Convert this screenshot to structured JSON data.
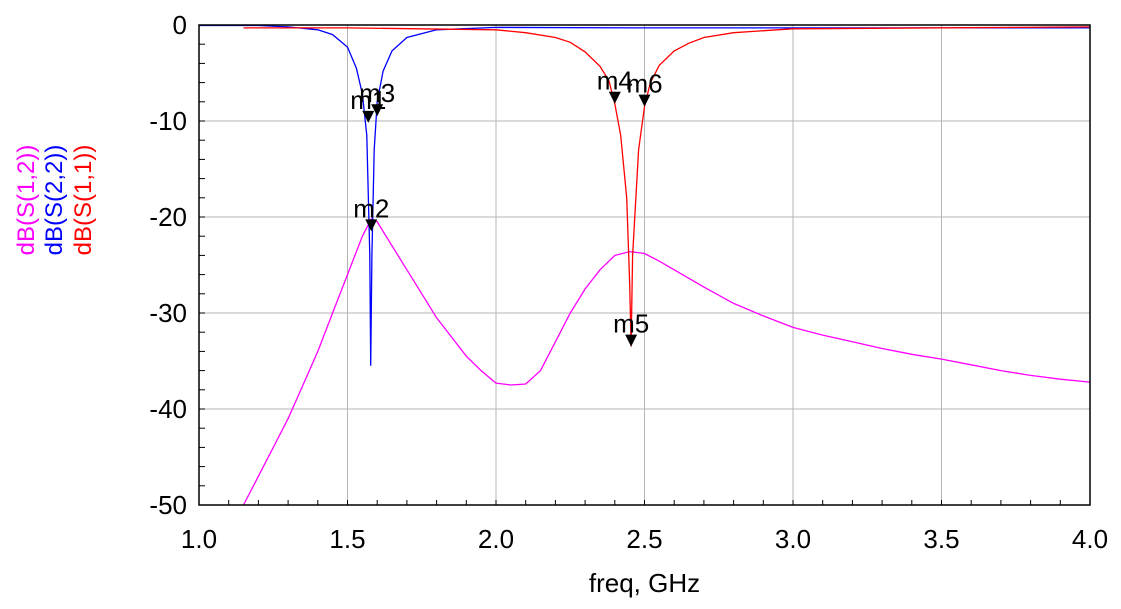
{
  "chart_data": {
    "type": "line",
    "xlabel": "freq, GHz",
    "xlim": [
      1.0,
      4.0
    ],
    "ylim": [
      -50,
      0
    ],
    "xticks": [
      "1.0",
      "1.5",
      "2.0",
      "2.5",
      "3.0",
      "3.5",
      "4.0"
    ],
    "yticks": [
      "0",
      "-10",
      "-20",
      "-30",
      "-40",
      "-50"
    ],
    "grid": true,
    "legend": "rotated labels left of y-axis",
    "series": [
      {
        "name": "dB(S(1,2))",
        "color": "#ff00ff",
        "x": [
          1.15,
          1.2,
          1.25,
          1.3,
          1.35,
          1.4,
          1.45,
          1.5,
          1.55,
          1.58,
          1.6,
          1.65,
          1.7,
          1.75,
          1.8,
          1.85,
          1.9,
          1.95,
          2.0,
          2.05,
          2.1,
          2.15,
          2.2,
          2.25,
          2.3,
          2.35,
          2.4,
          2.45,
          2.5,
          2.55,
          2.6,
          2.7,
          2.8,
          2.9,
          3.0,
          3.1,
          3.2,
          3.3,
          3.4,
          3.5,
          3.6,
          3.7,
          3.8,
          3.9,
          4.0
        ],
        "y": [
          -50,
          -47,
          -44,
          -41,
          -37.5,
          -34,
          -30,
          -26,
          -22,
          -20.2,
          -20.5,
          -23,
          -25.5,
          -28,
          -30.5,
          -32.5,
          -34.5,
          -36,
          -37.3,
          -37.5,
          -37.4,
          -36,
          -33,
          -30,
          -27.5,
          -25.5,
          -24,
          -23.6,
          -23.8,
          -24.6,
          -25.5,
          -27.3,
          -29,
          -30.3,
          -31.5,
          -32.3,
          -33,
          -33.7,
          -34.3,
          -34.8,
          -35.4,
          -36,
          -36.5,
          -36.9,
          -37.2
        ]
      },
      {
        "name": "dB(S(2,2))",
        "color": "#0000ff",
        "x": [
          1.0,
          1.2,
          1.3,
          1.4,
          1.45,
          1.5,
          1.53,
          1.55,
          1.565,
          1.575,
          1.578,
          1.582,
          1.59,
          1.6,
          1.62,
          1.65,
          1.7,
          1.8,
          2.0,
          2.5,
          3.0,
          4.0
        ],
        "y": [
          -0.05,
          -0.05,
          -0.2,
          -0.5,
          -1.0,
          -2.3,
          -4.5,
          -7.2,
          -11.5,
          -24,
          -35.5,
          -24,
          -13,
          -8,
          -4.8,
          -2.7,
          -1.3,
          -0.5,
          -0.25,
          -0.3,
          -0.3,
          -0.3
        ],
        "markers": [
          {
            "name": "m1",
            "x": 1.57,
            "y": -10.2
          },
          {
            "name": "m3",
            "x": 1.6,
            "y": -9.5
          },
          {
            "name": "m2",
            "x": 1.58,
            "y": -21.5
          }
        ]
      },
      {
        "name": "dB(S(1,1))",
        "color": "#ff0000",
        "x": [
          1.15,
          1.5,
          2.0,
          2.1,
          2.2,
          2.25,
          2.3,
          2.35,
          2.38,
          2.4,
          2.42,
          2.44,
          2.45,
          2.455,
          2.46,
          2.48,
          2.5,
          2.52,
          2.55,
          2.6,
          2.65,
          2.7,
          2.8,
          3.0,
          4.0
        ],
        "y": [
          -0.3,
          -0.3,
          -0.5,
          -0.8,
          -1.3,
          -1.8,
          -2.8,
          -4.3,
          -5.8,
          -8.2,
          -11.5,
          -18,
          -27,
          -33.5,
          -24,
          -13,
          -8.5,
          -6,
          -4.2,
          -2.7,
          -1.9,
          -1.3,
          -0.8,
          -0.4,
          -0.2
        ],
        "markers": [
          {
            "name": "m4",
            "x": 2.4,
            "y": -8.2
          },
          {
            "name": "m6",
            "x": 2.5,
            "y": -8.5
          },
          {
            "name": "m5",
            "x": 2.455,
            "y": -33.5
          }
        ]
      }
    ]
  }
}
